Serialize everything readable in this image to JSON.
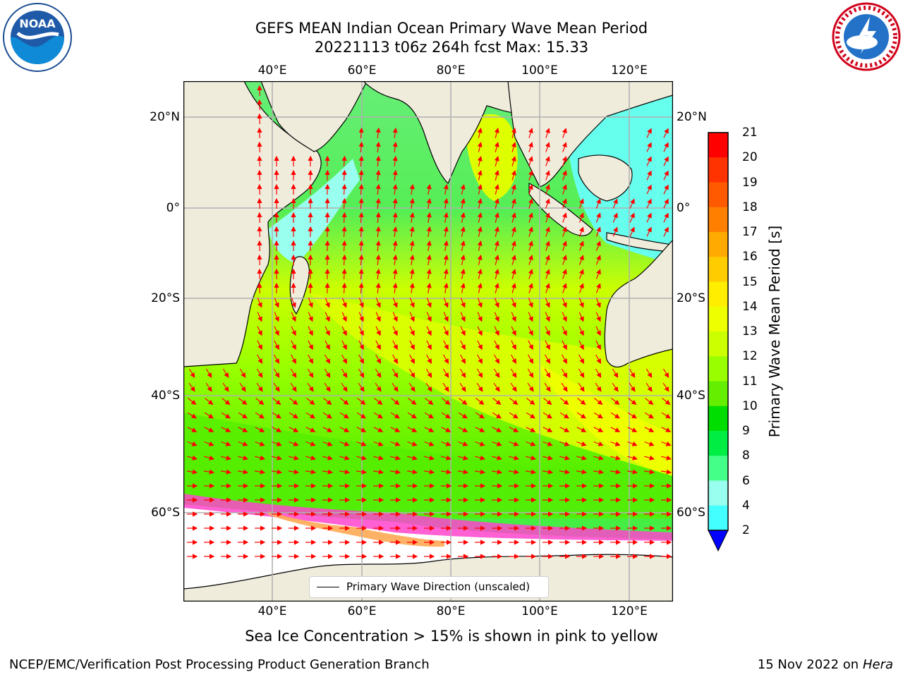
{
  "title": {
    "line1": "GEFS MEAN Indian Ocean Primary Wave Mean Period",
    "line2": "20221113 t06z 264h fcst   Max: 15.33"
  },
  "map": {
    "lon_ticks": [
      "40°E",
      "60°E",
      "80°E",
      "100°E",
      "120°E"
    ],
    "lat_ticks": [
      "20°N",
      "0°",
      "20°S",
      "40°S",
      "60°S"
    ],
    "legend": "Primary Wave Direction (unscaled)",
    "colors": {
      "land": "#efecdc",
      "ice_region": "#ffffff",
      "arrow": "#ff0000",
      "grid": "#b0b0b0"
    }
  },
  "colorbar": {
    "label": "Primary Wave Mean Period [s]",
    "ticks": [
      "21",
      "20",
      "19",
      "18",
      "17",
      "16",
      "15",
      "14",
      "13",
      "12",
      "11",
      "10",
      "9",
      "8",
      "6",
      "4",
      "2"
    ],
    "colors": [
      "#ff0000",
      "#ff3300",
      "#ff5a00",
      "#ff8000",
      "#ffaa00",
      "#ffcc00",
      "#ffee00",
      "#eeff00",
      "#ccff00",
      "#99ff00",
      "#66ee00",
      "#00dd00",
      "#00ee44",
      "#44ff88",
      "#99ffee",
      "#44ffff",
      "#00e6ff",
      "#0099ff",
      "#0000ff"
    ]
  },
  "footer": {
    "note": "Sea Ice Concentration > 15% is shown in pink to yellow",
    "credit": "NCEP/EMC/Verification Post Processing Product Generation Branch",
    "date": "15 Nov 2022 on",
    "machine": "Hera"
  },
  "logos": {
    "noaa": "NOAA",
    "nws": "NATIONAL WEATHER SERVICE"
  }
}
